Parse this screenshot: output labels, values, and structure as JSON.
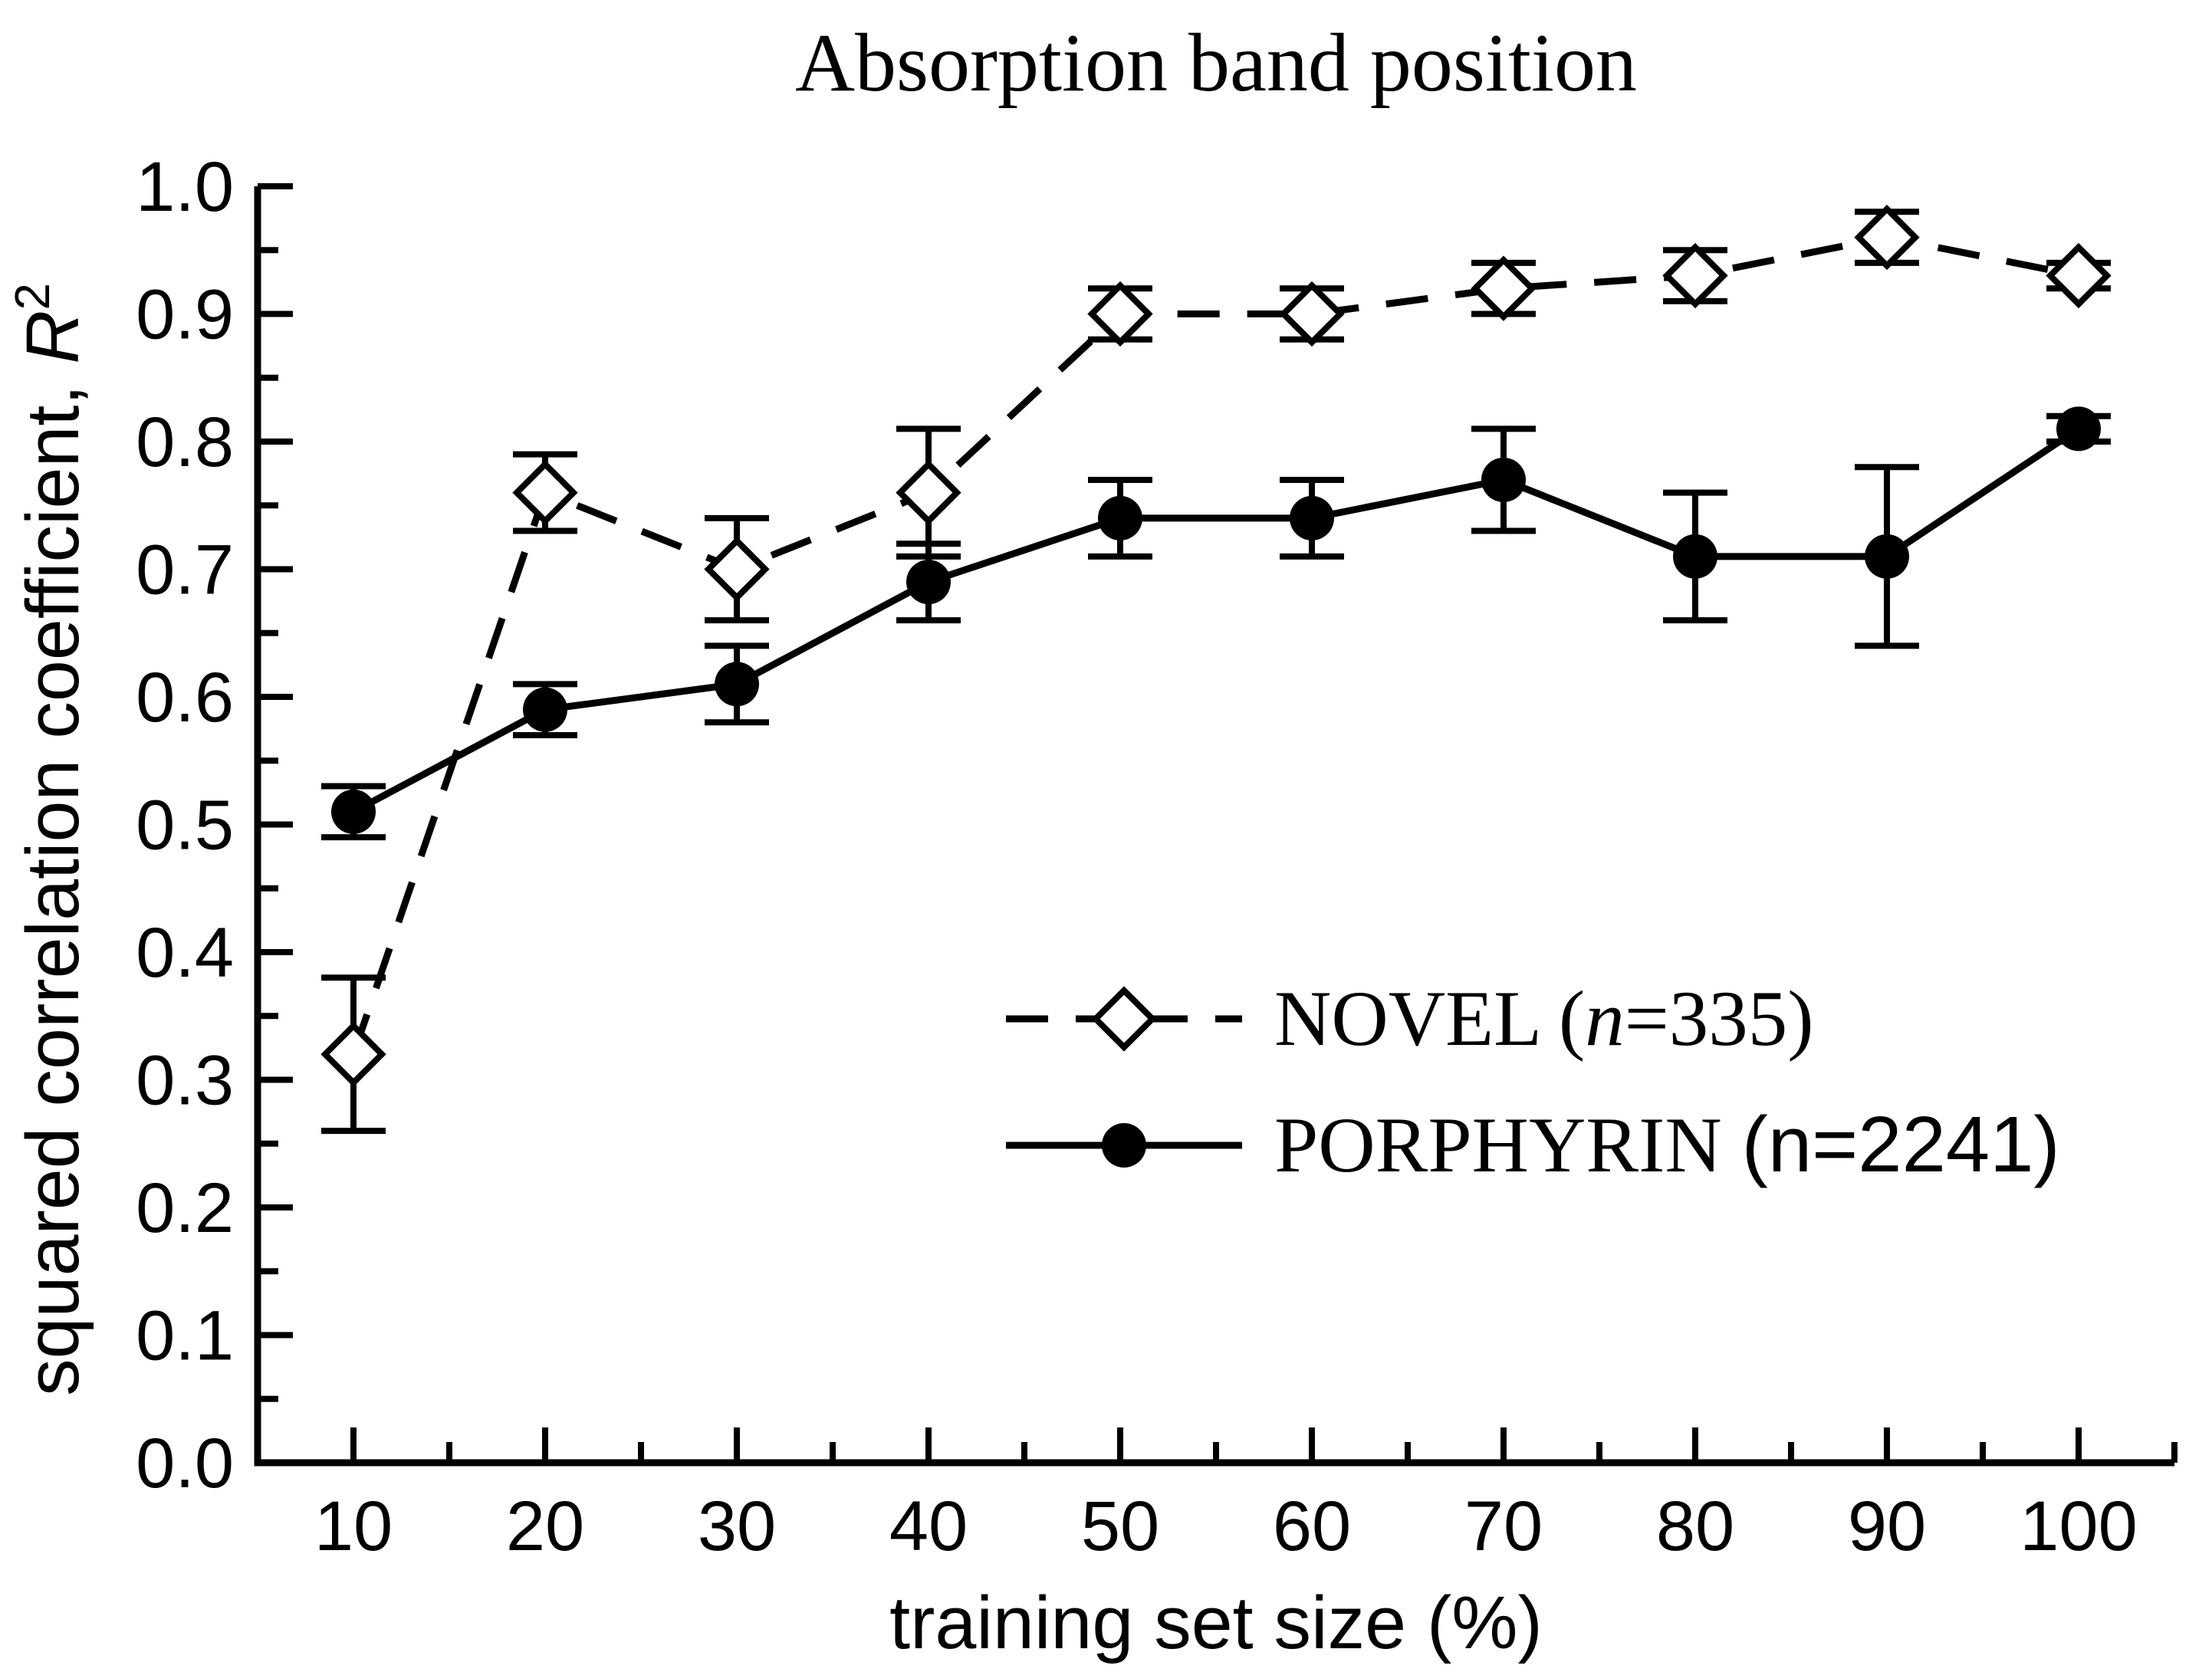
{
  "figure": {
    "background": "#ffffff",
    "ink": "#000000"
  },
  "chart_data": {
    "type": "line",
    "title": "Absorption band position",
    "xlabel": "training set size (%)",
    "ylabel": {
      "full": "squared correlation coefficient, R²",
      "prefix": "squared correlation coefficient, ",
      "symbol": "R",
      "exponent": "2"
    },
    "xlim": [
      5,
      105
    ],
    "ylim": [
      0.0,
      1.0
    ],
    "grid": false,
    "legend_position": "inside-center-right",
    "x_axis": {
      "major_ticks": [
        10,
        20,
        30,
        40,
        50,
        60,
        70,
        80,
        90,
        100
      ],
      "tick_labels": [
        "10",
        "20",
        "30",
        "40",
        "50",
        "60",
        "70",
        "80",
        "90",
        "100"
      ],
      "minor_ticks": [
        15,
        25,
        35,
        45,
        55,
        65,
        75,
        85,
        95,
        105
      ]
    },
    "y_axis": {
      "major_ticks": [
        0.0,
        0.1,
        0.2,
        0.3,
        0.4,
        0.5,
        0.6,
        0.7,
        0.8,
        0.9,
        1.0
      ],
      "tick_labels": [
        "0.0",
        "0.1",
        "0.2",
        "0.3",
        "0.4",
        "0.5",
        "0.6",
        "0.7",
        "0.8",
        "0.9",
        "1.0"
      ],
      "minor_ticks": [
        0.05,
        0.15,
        0.25,
        0.35,
        0.45,
        0.55,
        0.65,
        0.75,
        0.85,
        0.95
      ]
    },
    "x": [
      10,
      20,
      30,
      40,
      50,
      60,
      70,
      80,
      90,
      100
    ],
    "series": [
      {
        "name": "NOVEL",
        "legend_label_parts": [
          {
            "text": "NOVEL (",
            "style": "serif"
          },
          {
            "text": "n",
            "style": "serif-italic"
          },
          {
            "text": "=335)",
            "style": "serif"
          }
        ],
        "marker": "open-diamond",
        "line_style": "dashed",
        "values": [
          0.32,
          0.76,
          0.7,
          0.76,
          0.9,
          0.9,
          0.92,
          0.93,
          0.96,
          0.93
        ],
        "errors": [
          0.06,
          0.03,
          0.04,
          0.05,
          0.02,
          0.02,
          0.02,
          0.02,
          0.02,
          0.01
        ]
      },
      {
        "name": "PORPHYRIN",
        "legend_label_parts": [
          {
            "text": "PORPHYRIN ",
            "style": "serif"
          },
          {
            "text": "(n=2241)",
            "style": "sans"
          }
        ],
        "marker": "filled-circle",
        "line_style": "solid",
        "values": [
          0.51,
          0.59,
          0.61,
          0.69,
          0.74,
          0.74,
          0.77,
          0.71,
          0.71,
          0.81
        ],
        "errors": [
          0.02,
          0.02,
          0.03,
          0.03,
          0.03,
          0.03,
          0.04,
          0.05,
          0.07,
          0.01
        ]
      }
    ]
  }
}
